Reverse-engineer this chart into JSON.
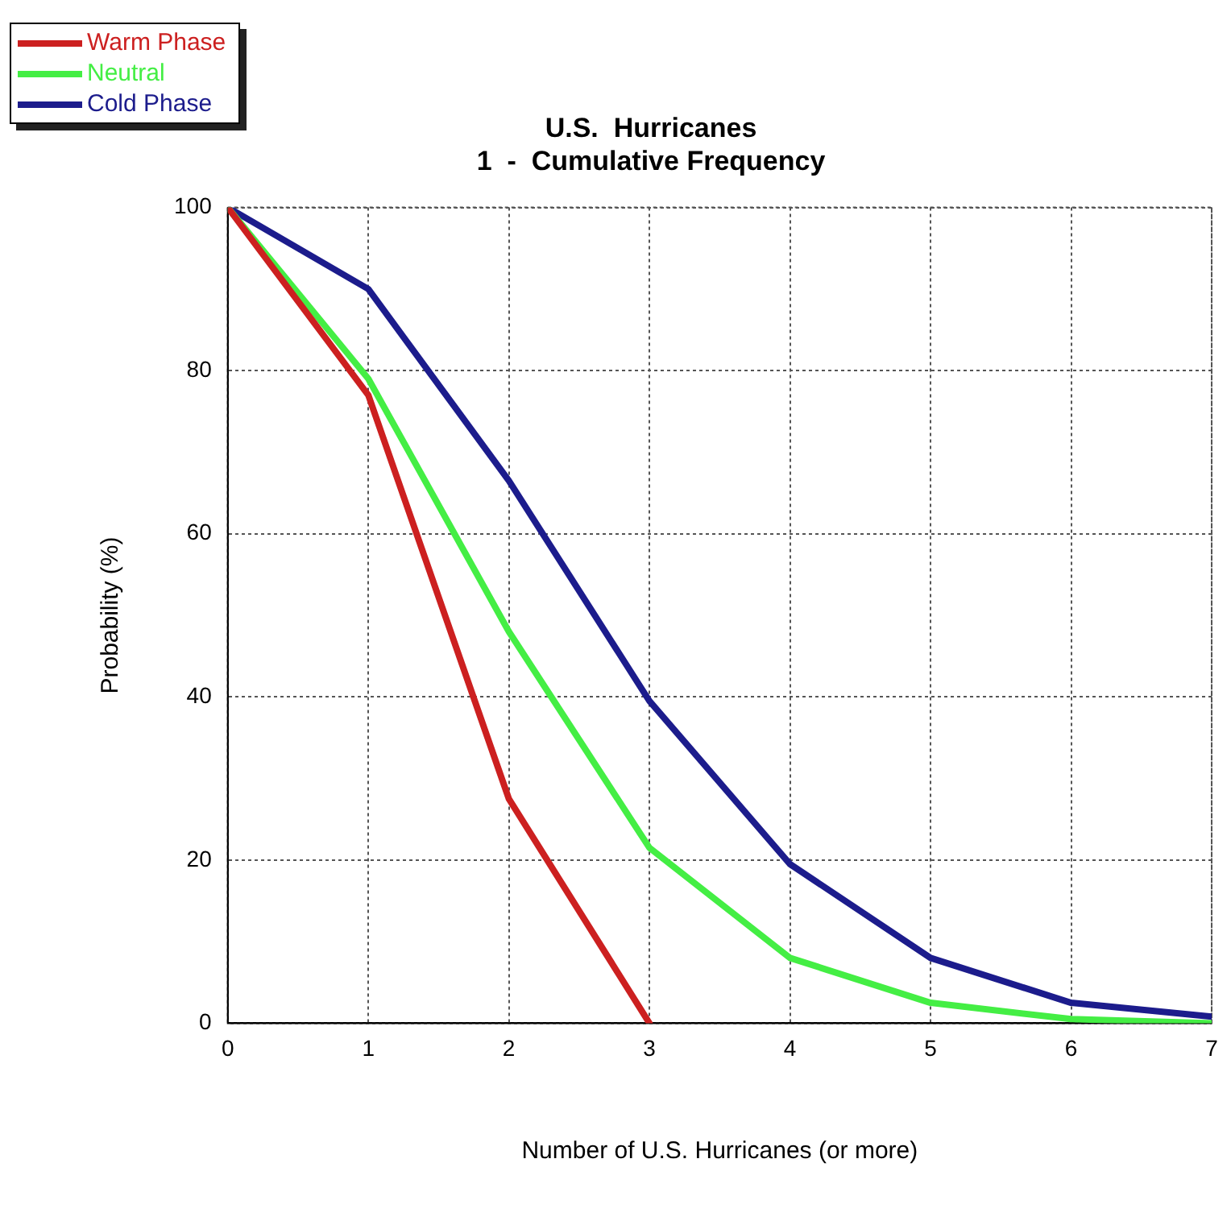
{
  "chart_data": {
    "type": "line",
    "title": "U.S.  Hurricanes\n1  -  Cumulative Frequency",
    "xlabel": "Number of U.S. Hurricanes (or more)",
    "ylabel": "Probability (%)",
    "x": [
      0,
      1,
      2,
      3,
      4,
      5,
      6,
      7
    ],
    "series": [
      {
        "name": "Warm Phase",
        "color": "#cc2020",
        "values": [
          100,
          77,
          27.5,
          0,
          null,
          null,
          null,
          null
        ]
      },
      {
        "name": "Neutral",
        "color": "#44ee44",
        "values": [
          100,
          79,
          48,
          21.5,
          8,
          2.5,
          0.5,
          0
        ]
      },
      {
        "name": "Cold Phase",
        "color": "#1c1c8c",
        "values": [
          100,
          90,
          66.5,
          39.5,
          19.5,
          8,
          2.5,
          0.8
        ]
      }
    ],
    "xlim": [
      0,
      7
    ],
    "xticks": [
      0,
      1,
      2,
      3,
      4,
      5,
      6,
      7
    ],
    "ylim": [
      0,
      100
    ],
    "yticks": [
      0,
      20,
      40,
      60,
      80,
      100
    ],
    "grid": true,
    "legend": "top left",
    "marker": "none",
    "line_style": "solid"
  }
}
